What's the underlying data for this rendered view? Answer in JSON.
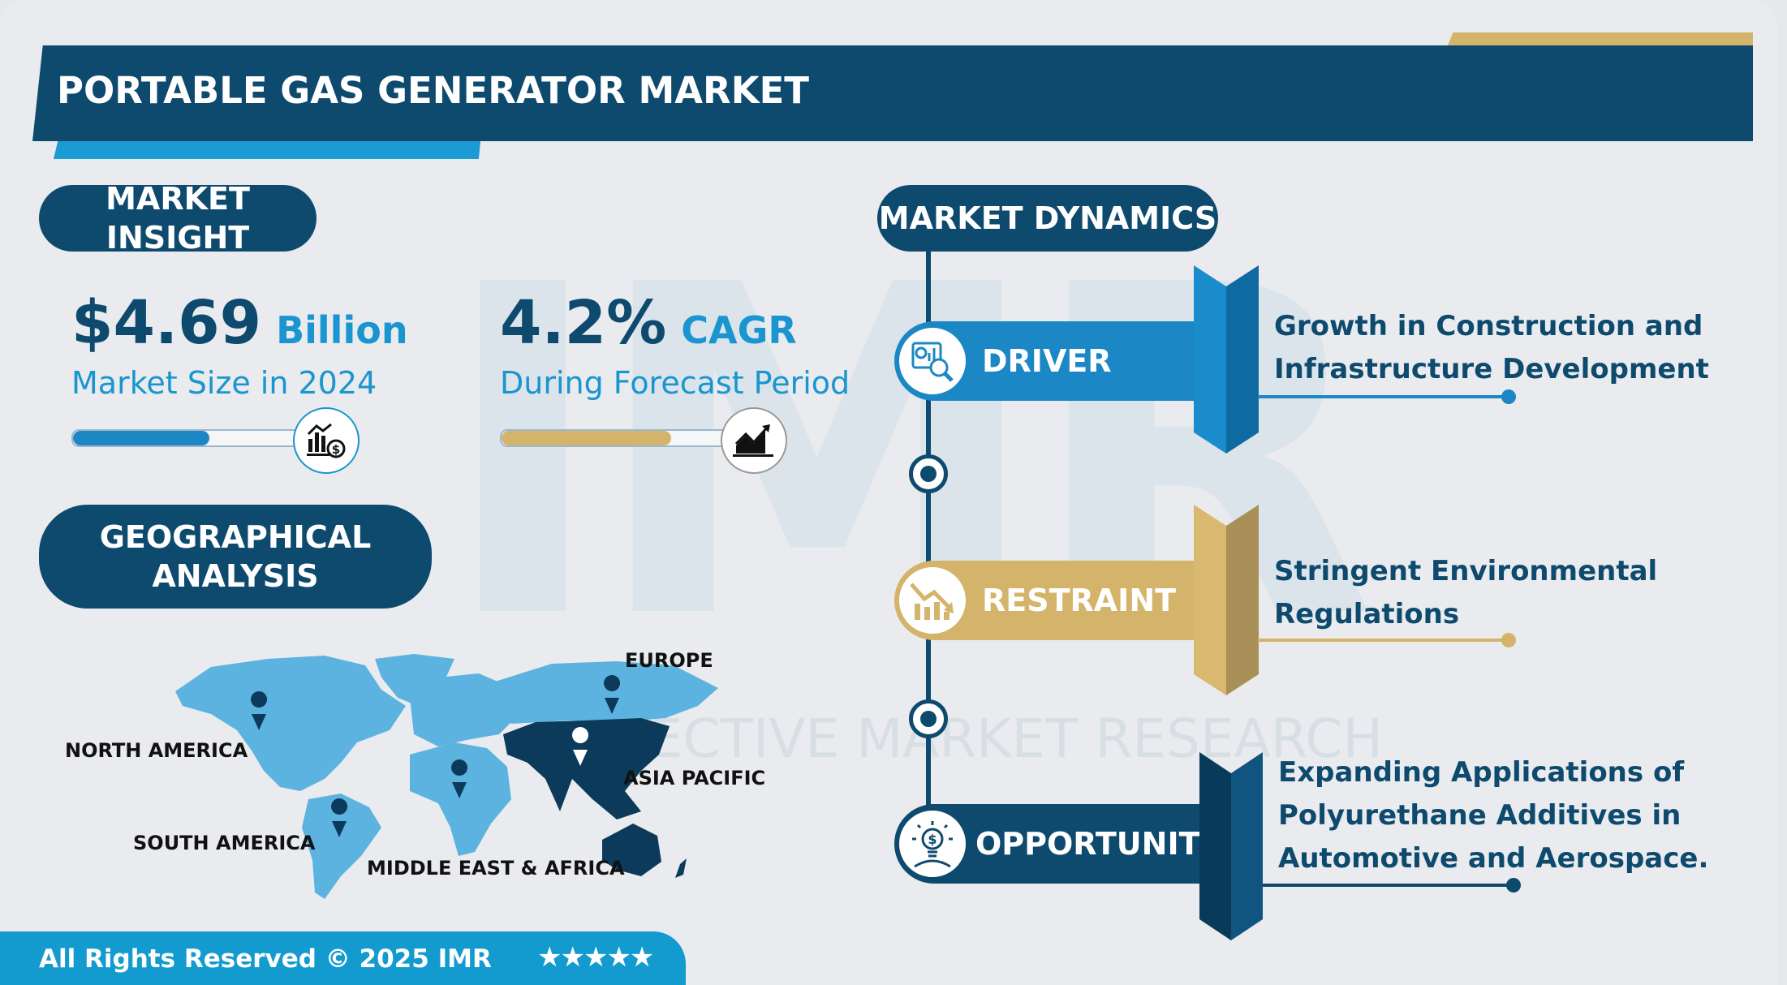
{
  "header": {
    "title": "PORTABLE GAS GENERATOR MARKET"
  },
  "watermark": {
    "logo": "IMR",
    "text": "INTROSPECTIVE MARKET RESEARCH"
  },
  "market_insight": {
    "heading": "MARKET INSIGHT",
    "market_size": {
      "value": "$4.69",
      "unit": "Billion",
      "label": "Market Size in 2024",
      "progress_percent": 60,
      "icon": "chart-dollar-icon"
    },
    "cagr": {
      "value": "4.2%",
      "unit": "CAGR",
      "label": "During Forecast Period",
      "progress_percent": 74,
      "icon": "growth-chart-icon"
    }
  },
  "geographical": {
    "heading_line1": "GEOGRAPHICAL",
    "heading_line2": "ANALYSIS",
    "regions": [
      "NORTH AMERICA",
      "EUROPE",
      "ASIA PACIFIC",
      "SOUTH AMERICA",
      "MIDDLE EAST & AFRICA"
    ],
    "highlighted_region": "ASIA PACIFIC"
  },
  "market_dynamics": {
    "heading": "MARKET DYNAMICS",
    "items": [
      {
        "label": "DRIVER",
        "icon": "analytics-magnifier-icon",
        "lines": [
          "Growth in Construction and",
          "Infrastructure Development"
        ],
        "color": "#1b87c4"
      },
      {
        "label": "RESTRAINT",
        "icon": "declining-chart-icon",
        "lines": [
          "Stringent Environmental",
          "Regulations"
        ],
        "color": "#d4b46a"
      },
      {
        "label": "OPPORTUNITY",
        "icon": "lightbulb-dollar-icon",
        "lines": [
          "Expanding Applications of",
          "Polyurethane Additives in",
          "Automotive and Aerospace."
        ],
        "color": "#0d4a6e"
      }
    ]
  },
  "footer": {
    "copyright": "All Rights Reserved © 2025 IMR",
    "stars": "★★★★★",
    "rating": 5
  },
  "colors": {
    "navy": "#0d4a6e",
    "blue": "#1b87c4",
    "light_blue": "#1a95cf",
    "gold": "#d4b46a",
    "map_light": "#5cb3e0",
    "map_dark": "#0b3a5a"
  }
}
